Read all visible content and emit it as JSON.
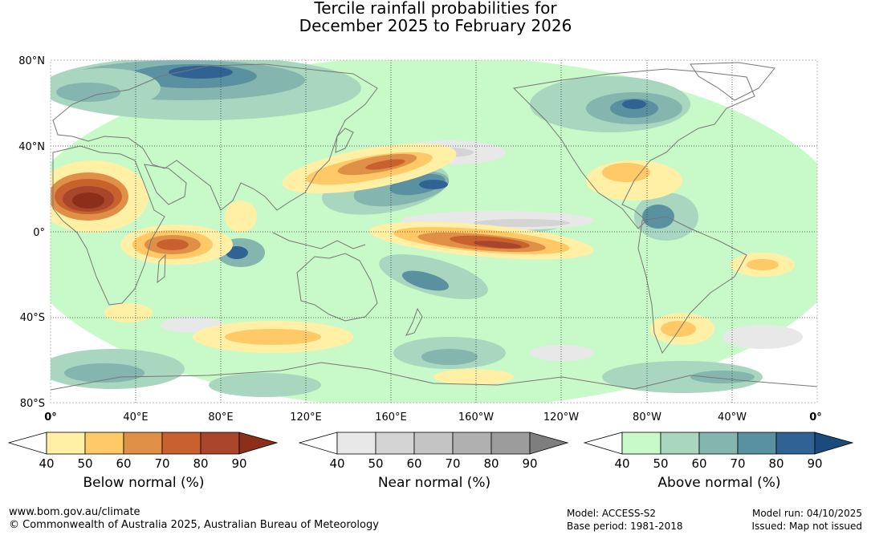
{
  "title": {
    "line1": "Tercile rainfall probabilities for",
    "line2": "December 2025 to February 2026"
  },
  "map": {
    "lat_labels": [
      "80°N",
      "40°N",
      "0°",
      "40°S",
      "80°S"
    ],
    "lon_labels": [
      "0°",
      "40°E",
      "80°E",
      "120°E",
      "160°E",
      "160°W",
      "120°W",
      "80°W",
      "40°W",
      "0°"
    ],
    "colors": {
      "below": [
        "#fff0a6",
        "#fec966",
        "#e08f47",
        "#c9612f",
        "#a8452a",
        "#8b2f1a"
      ],
      "near": [
        "#e8e8e8",
        "#d4d4d4",
        "#c4c4c4",
        "#b0b0b0",
        "#9c9c9c",
        "#7e7e7e"
      ],
      "above": [
        "#c8f9c8",
        "#a8d6be",
        "#84b5ae",
        "#5a91a0",
        "#306394",
        "#1a4a7e"
      ],
      "land_outline": "#777777"
    }
  },
  "legends": [
    {
      "title": "Below normal (%)",
      "labels": [
        "40",
        "50",
        "60",
        "70",
        "80",
        "90"
      ],
      "scheme": "below"
    },
    {
      "title": "Near normal (%)",
      "labels": [
        "40",
        "50",
        "60",
        "70",
        "80",
        "90"
      ],
      "scheme": "near"
    },
    {
      "title": "Above normal (%)",
      "labels": [
        "40",
        "50",
        "60",
        "70",
        "80",
        "90"
      ],
      "scheme": "above"
    }
  ],
  "footer": {
    "website": "www.bom.gov.au/climate",
    "copyright": "© Commonwealth of Australia 2025, Australian Bureau of Meteorology",
    "model": "Model: ACCESS-S2",
    "base_period": "Base period: 1981-2018",
    "model_run": "Model run: 04/10/2025",
    "issued": "Issued: Map not issued"
  }
}
